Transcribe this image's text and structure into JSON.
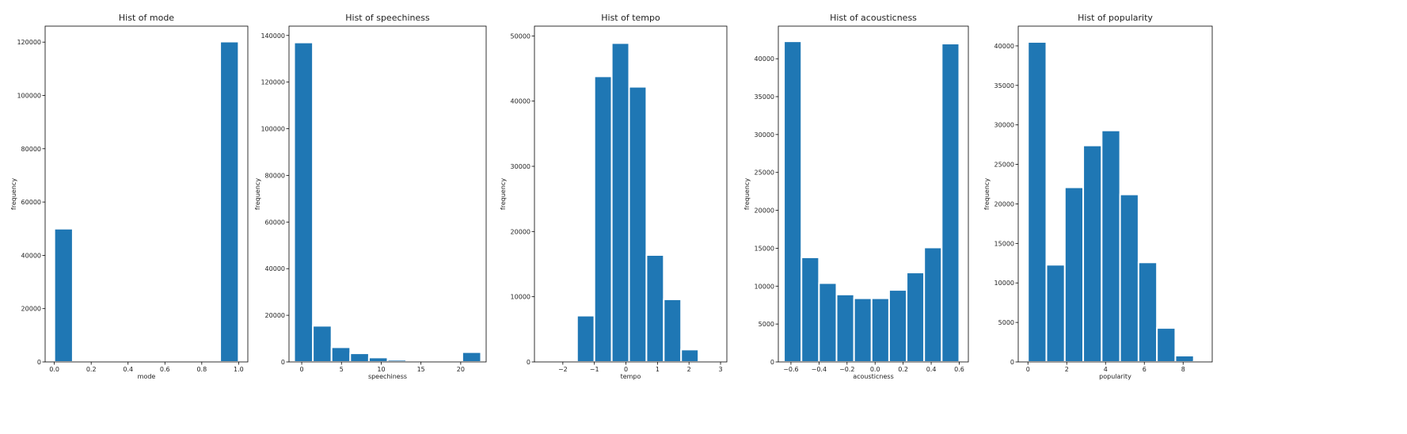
{
  "colors": {
    "bar": "#1f77b4",
    "bar_edge": "#ffffff",
    "axis": "#000000"
  },
  "chart_data": [
    {
      "type": "bar",
      "title": "Hist of mode",
      "xlabel": "mode",
      "ylabel": "frequency",
      "xlim": [
        -0.05,
        1.05
      ],
      "ylim": [
        0,
        126000
      ],
      "xticks": [
        0.0,
        0.2,
        0.4,
        0.6,
        0.8,
        1.0
      ],
      "xtick_labels": [
        "0.0",
        "0.2",
        "0.4",
        "0.6",
        "0.8",
        "1.0"
      ],
      "yticks": [
        0,
        20000,
        40000,
        60000,
        80000,
        100000,
        120000
      ],
      "ytick_labels": [
        "0",
        "20000",
        "40000",
        "60000",
        "80000",
        "100000",
        "120000"
      ],
      "bins": [
        [
          0.0,
          0.1
        ],
        [
          0.1,
          0.2
        ],
        [
          0.2,
          0.3
        ],
        [
          0.3,
          0.4
        ],
        [
          0.4,
          0.5
        ],
        [
          0.5,
          0.6
        ],
        [
          0.6,
          0.7
        ],
        [
          0.7,
          0.8
        ],
        [
          0.8,
          0.9
        ],
        [
          0.9,
          1.0
        ]
      ],
      "values": [
        50000,
        0,
        0,
        0,
        0,
        0,
        0,
        0,
        0,
        120200
      ]
    },
    {
      "type": "bar",
      "title": "Hist of speechiness",
      "xlabel": "speechiness",
      "ylabel": "frequency",
      "xlim": [
        -1.6,
        23.2
      ],
      "ylim": [
        0,
        144000
      ],
      "xticks": [
        0,
        5,
        10,
        15,
        20
      ],
      "xtick_labels": [
        "0",
        "5",
        "10",
        "15",
        "20"
      ],
      "yticks": [
        0,
        20000,
        40000,
        60000,
        80000,
        100000,
        120000,
        140000
      ],
      "ytick_labels": [
        "0",
        "20000",
        "40000",
        "60000",
        "80000",
        "100000",
        "120000",
        "140000"
      ],
      "bins": [
        [
          -0.95,
          1.4
        ],
        [
          1.4,
          3.75
        ],
        [
          3.75,
          6.1
        ],
        [
          6.1,
          8.45
        ],
        [
          8.45,
          10.8
        ],
        [
          10.8,
          13.15
        ],
        [
          13.15,
          15.5
        ],
        [
          15.5,
          17.85
        ],
        [
          17.85,
          20.2
        ],
        [
          20.2,
          22.55
        ]
      ],
      "values": [
        137000,
        15500,
        6300,
        3700,
        1900,
        900,
        500,
        350,
        600,
        4200
      ]
    },
    {
      "type": "bar",
      "title": "Hist of tempo",
      "xlabel": "tempo",
      "ylabel": "frequency",
      "xlim": [
        -2.9,
        3.2
      ],
      "ylim": [
        0,
        51500
      ],
      "xticks": [
        -2,
        -1,
        0,
        1,
        2,
        3
      ],
      "xtick_labels": [
        "−2",
        "−1",
        "0",
        "1",
        "2",
        "3"
      ],
      "yticks": [
        0,
        10000,
        20000,
        30000,
        40000,
        50000
      ],
      "ytick_labels": [
        "0",
        "10000",
        "20000",
        "30000",
        "40000",
        "50000"
      ],
      "bins": [
        [
          -2.65,
          -2.1
        ],
        [
          -2.1,
          -1.55
        ],
        [
          -1.55,
          -1.0
        ],
        [
          -1.0,
          -0.45
        ],
        [
          -0.45,
          0.1
        ],
        [
          0.1,
          0.65
        ],
        [
          0.65,
          1.2
        ],
        [
          1.2,
          1.75
        ],
        [
          1.75,
          2.3
        ],
        [
          2.3,
          2.85
        ]
      ],
      "values": [
        200,
        200,
        7100,
        43800,
        48900,
        42200,
        16400,
        9600,
        1900,
        0
      ]
    },
    {
      "type": "bar",
      "title": "Hist of acousticness",
      "xlabel": "acousticness",
      "ylabel": "frequency",
      "xlim": [
        -0.69,
        0.665
      ],
      "ylim": [
        0,
        44300
      ],
      "xticks": [
        -0.6,
        -0.4,
        -0.2,
        0.0,
        0.2,
        0.4,
        0.6
      ],
      "xtick_labels": [
        "−0.6",
        "−0.4",
        "−0.2",
        "0.0",
        "0.2",
        "0.4",
        "0.6"
      ],
      "yticks": [
        0,
        5000,
        10000,
        15000,
        20000,
        25000,
        30000,
        35000,
        40000
      ],
      "ytick_labels": [
        "0",
        "5000",
        "10000",
        "15000",
        "20000",
        "25000",
        "30000",
        "35000",
        "40000"
      ],
      "bins": [
        [
          -0.65,
          -0.525
        ],
        [
          -0.525,
          -0.4
        ],
        [
          -0.4,
          -0.275
        ],
        [
          -0.275,
          -0.15
        ],
        [
          -0.15,
          -0.025
        ],
        [
          -0.025,
          0.1
        ],
        [
          0.1,
          0.225
        ],
        [
          0.225,
          0.35
        ],
        [
          0.35,
          0.475
        ],
        [
          0.475,
          0.6
        ]
      ],
      "values": [
        42300,
        13800,
        10400,
        8900,
        8400,
        8400,
        9500,
        11800,
        15100,
        42000
      ]
    },
    {
      "type": "bar",
      "title": "Hist of popularity",
      "xlabel": "popularity",
      "ylabel": "frequency",
      "xlim": [
        -0.5,
        9.5
      ],
      "ylim": [
        0,
        42500
      ],
      "xticks": [
        0,
        2,
        4,
        6,
        8
      ],
      "xtick_labels": [
        "0",
        "2",
        "4",
        "6",
        "8"
      ],
      "yticks": [
        0,
        5000,
        10000,
        15000,
        20000,
        25000,
        30000,
        35000,
        40000
      ],
      "ytick_labels": [
        "0",
        "5000",
        "10000",
        "15000",
        "20000",
        "25000",
        "30000",
        "35000",
        "40000"
      ],
      "bins": [
        [
          0.0,
          0.95
        ],
        [
          0.95,
          1.9
        ],
        [
          1.9,
          2.85
        ],
        [
          2.85,
          3.8
        ],
        [
          3.8,
          4.75
        ],
        [
          4.75,
          5.7
        ],
        [
          5.7,
          6.65
        ],
        [
          6.65,
          7.6
        ],
        [
          7.6,
          8.55
        ],
        [
          8.55,
          9.5
        ]
      ],
      "values": [
        40500,
        12300,
        22100,
        27400,
        29300,
        21200,
        12600,
        4300,
        800,
        100
      ]
    }
  ]
}
